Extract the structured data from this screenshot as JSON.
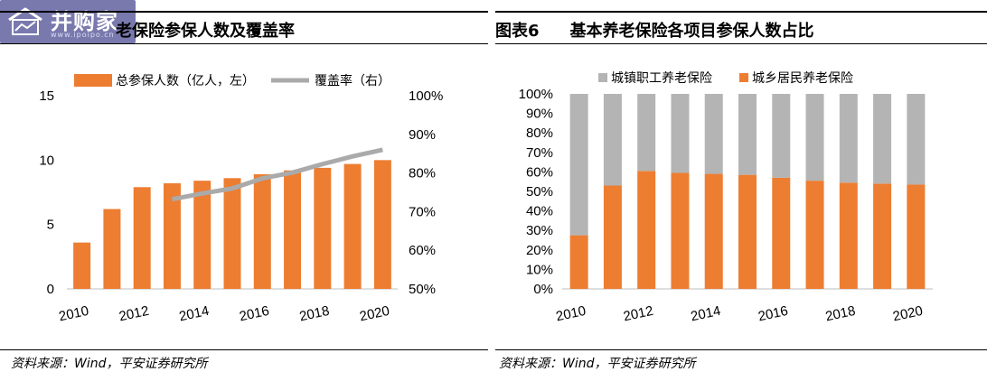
{
  "logo": {
    "text": "并购家",
    "sub": "www.ipoipo.cn"
  },
  "left": {
    "title": "老保险参保人数及覆盖率",
    "source": "资料来源：Wind，平安证券研究所"
  },
  "right": {
    "fig_no": "图表6",
    "title": "基本养老保险各项目参保人数占比",
    "source": "资料来源：Wind，平安证券研究所"
  },
  "colors": {
    "orange": "#ed7d31",
    "gray": "#b4b4b4",
    "line_gray": "#aaaaaa"
  },
  "chart_data": [
    {
      "type": "bar",
      "categories": [
        "2010",
        "2011",
        "2012",
        "2013",
        "2014",
        "2015",
        "2016",
        "2017",
        "2018",
        "2019",
        "2020"
      ],
      "x_tick_labels": [
        "2010",
        "2012",
        "2014",
        "2016",
        "2018",
        "2020"
      ],
      "series": [
        {
          "name": "总参保人数（亿人，左）",
          "axis": "left",
          "type": "bar",
          "values": [
            3.6,
            6.2,
            7.9,
            8.2,
            8.4,
            8.6,
            8.9,
            9.2,
            9.4,
            9.7,
            10.0
          ]
        },
        {
          "name": "覆盖率（右）",
          "axis": "right",
          "type": "line",
          "values": [
            null,
            null,
            null,
            73.2,
            74.7,
            76.0,
            78.6,
            80.1,
            82.3,
            84.3,
            86.0
          ]
        }
      ],
      "ylim_left": [
        0,
        15
      ],
      "yticks_left": [
        "0",
        "5",
        "10",
        "15"
      ],
      "ylim_right": [
        50,
        100
      ],
      "yticks_right": [
        "50%",
        "60%",
        "70%",
        "80%",
        "90%",
        "100%"
      ],
      "legend": "top",
      "grid": false
    },
    {
      "type": "bar",
      "stacked": true,
      "categories": [
        "2010",
        "2011",
        "2012",
        "2013",
        "2014",
        "2015",
        "2016",
        "2017",
        "2018",
        "2019",
        "2020"
      ],
      "x_tick_labels": [
        "2010",
        "2012",
        "2014",
        "2016",
        "2018",
        "2020"
      ],
      "series": [
        {
          "name": "城镇职工养老保险",
          "values": [
            72.5,
            47,
            39.5,
            40.5,
            41,
            41.5,
            43,
            44.5,
            45.5,
            46,
            46.5
          ]
        },
        {
          "name": "城乡居民养老保险",
          "values": [
            27.5,
            53,
            60.5,
            59.5,
            59,
            58.5,
            57,
            55.5,
            54.5,
            54,
            53.5
          ]
        }
      ],
      "ylim": [
        0,
        100
      ],
      "yticks": [
        "0%",
        "10%",
        "20%",
        "30%",
        "40%",
        "50%",
        "60%",
        "70%",
        "80%",
        "90%",
        "100%"
      ],
      "legend": "top",
      "grid": false
    }
  ]
}
